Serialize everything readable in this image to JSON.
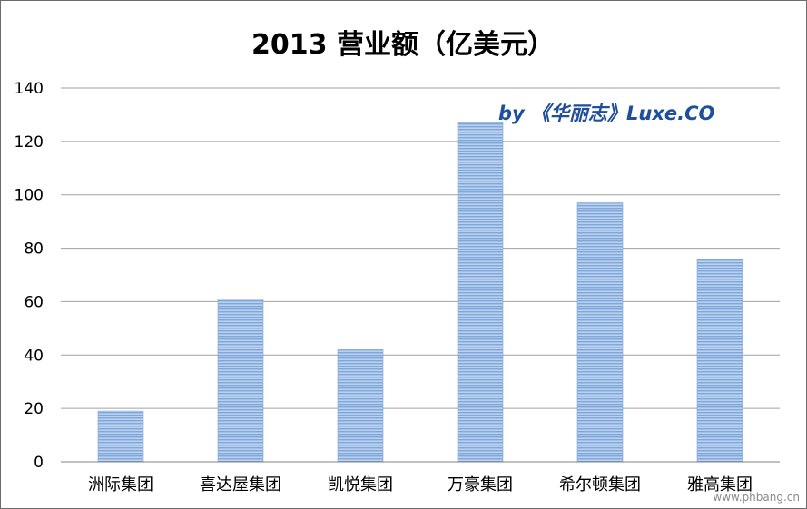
{
  "chart_data": {
    "type": "bar",
    "title": "2013 营业额（亿美元）",
    "categories": [
      "洲际集团",
      "喜达屋集团",
      "凯悦集团",
      "万豪集团",
      "希尔顿集团",
      "雅高集团"
    ],
    "values": [
      19,
      61,
      42,
      127,
      97,
      76
    ],
    "ylim": [
      0,
      140
    ],
    "yticks": [
      0,
      20,
      40,
      60,
      80,
      100,
      120,
      140
    ],
    "xlabel": "",
    "ylabel": "",
    "grid": true,
    "legend": "none",
    "bar_color": "#7fa7da",
    "bar_stripe_color": "#b9d0ee",
    "annotation": "by 《华丽志》Luxe.CO",
    "annotation_color": "#1f4e9a",
    "watermark_site": "www.phbang.cn"
  }
}
